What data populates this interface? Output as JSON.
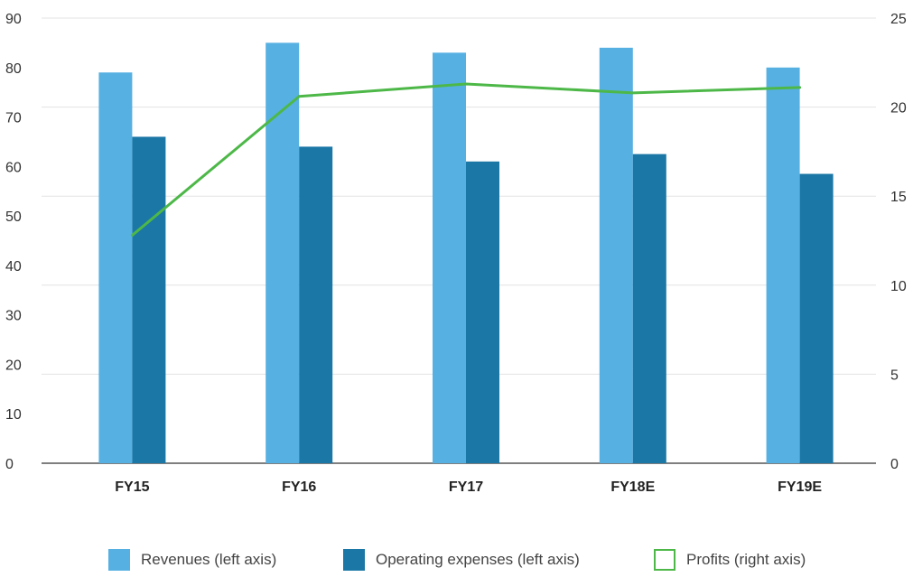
{
  "chart_data": {
    "type": "bar",
    "categories": [
      "FY15",
      "FY16",
      "FY17",
      "FY18E",
      "FY19E"
    ],
    "series": [
      {
        "name": "Revenues (left axis)",
        "type": "bar",
        "axis": "left",
        "color": "#56b0e2",
        "values": [
          79,
          85,
          83,
          84,
          80
        ]
      },
      {
        "name": "Operating expenses (left axis)",
        "type": "bar",
        "axis": "left",
        "color": "#1b77a6",
        "values": [
          66,
          64,
          61,
          62.5,
          58.5
        ]
      },
      {
        "name": "Profits (right axis)",
        "type": "line",
        "axis": "right",
        "color": "#4db848",
        "values": [
          12.8,
          20.6,
          21.3,
          20.8,
          21.1
        ]
      }
    ],
    "y_left": {
      "min": 0,
      "max": 90,
      "ticks": [
        0,
        10,
        20,
        30,
        40,
        50,
        60,
        70,
        80,
        90
      ]
    },
    "y_right": {
      "min": 0,
      "max": 25,
      "ticks": [
        0,
        5,
        10,
        15,
        20,
        25
      ]
    },
    "grid": true,
    "legend_position": "bottom"
  }
}
